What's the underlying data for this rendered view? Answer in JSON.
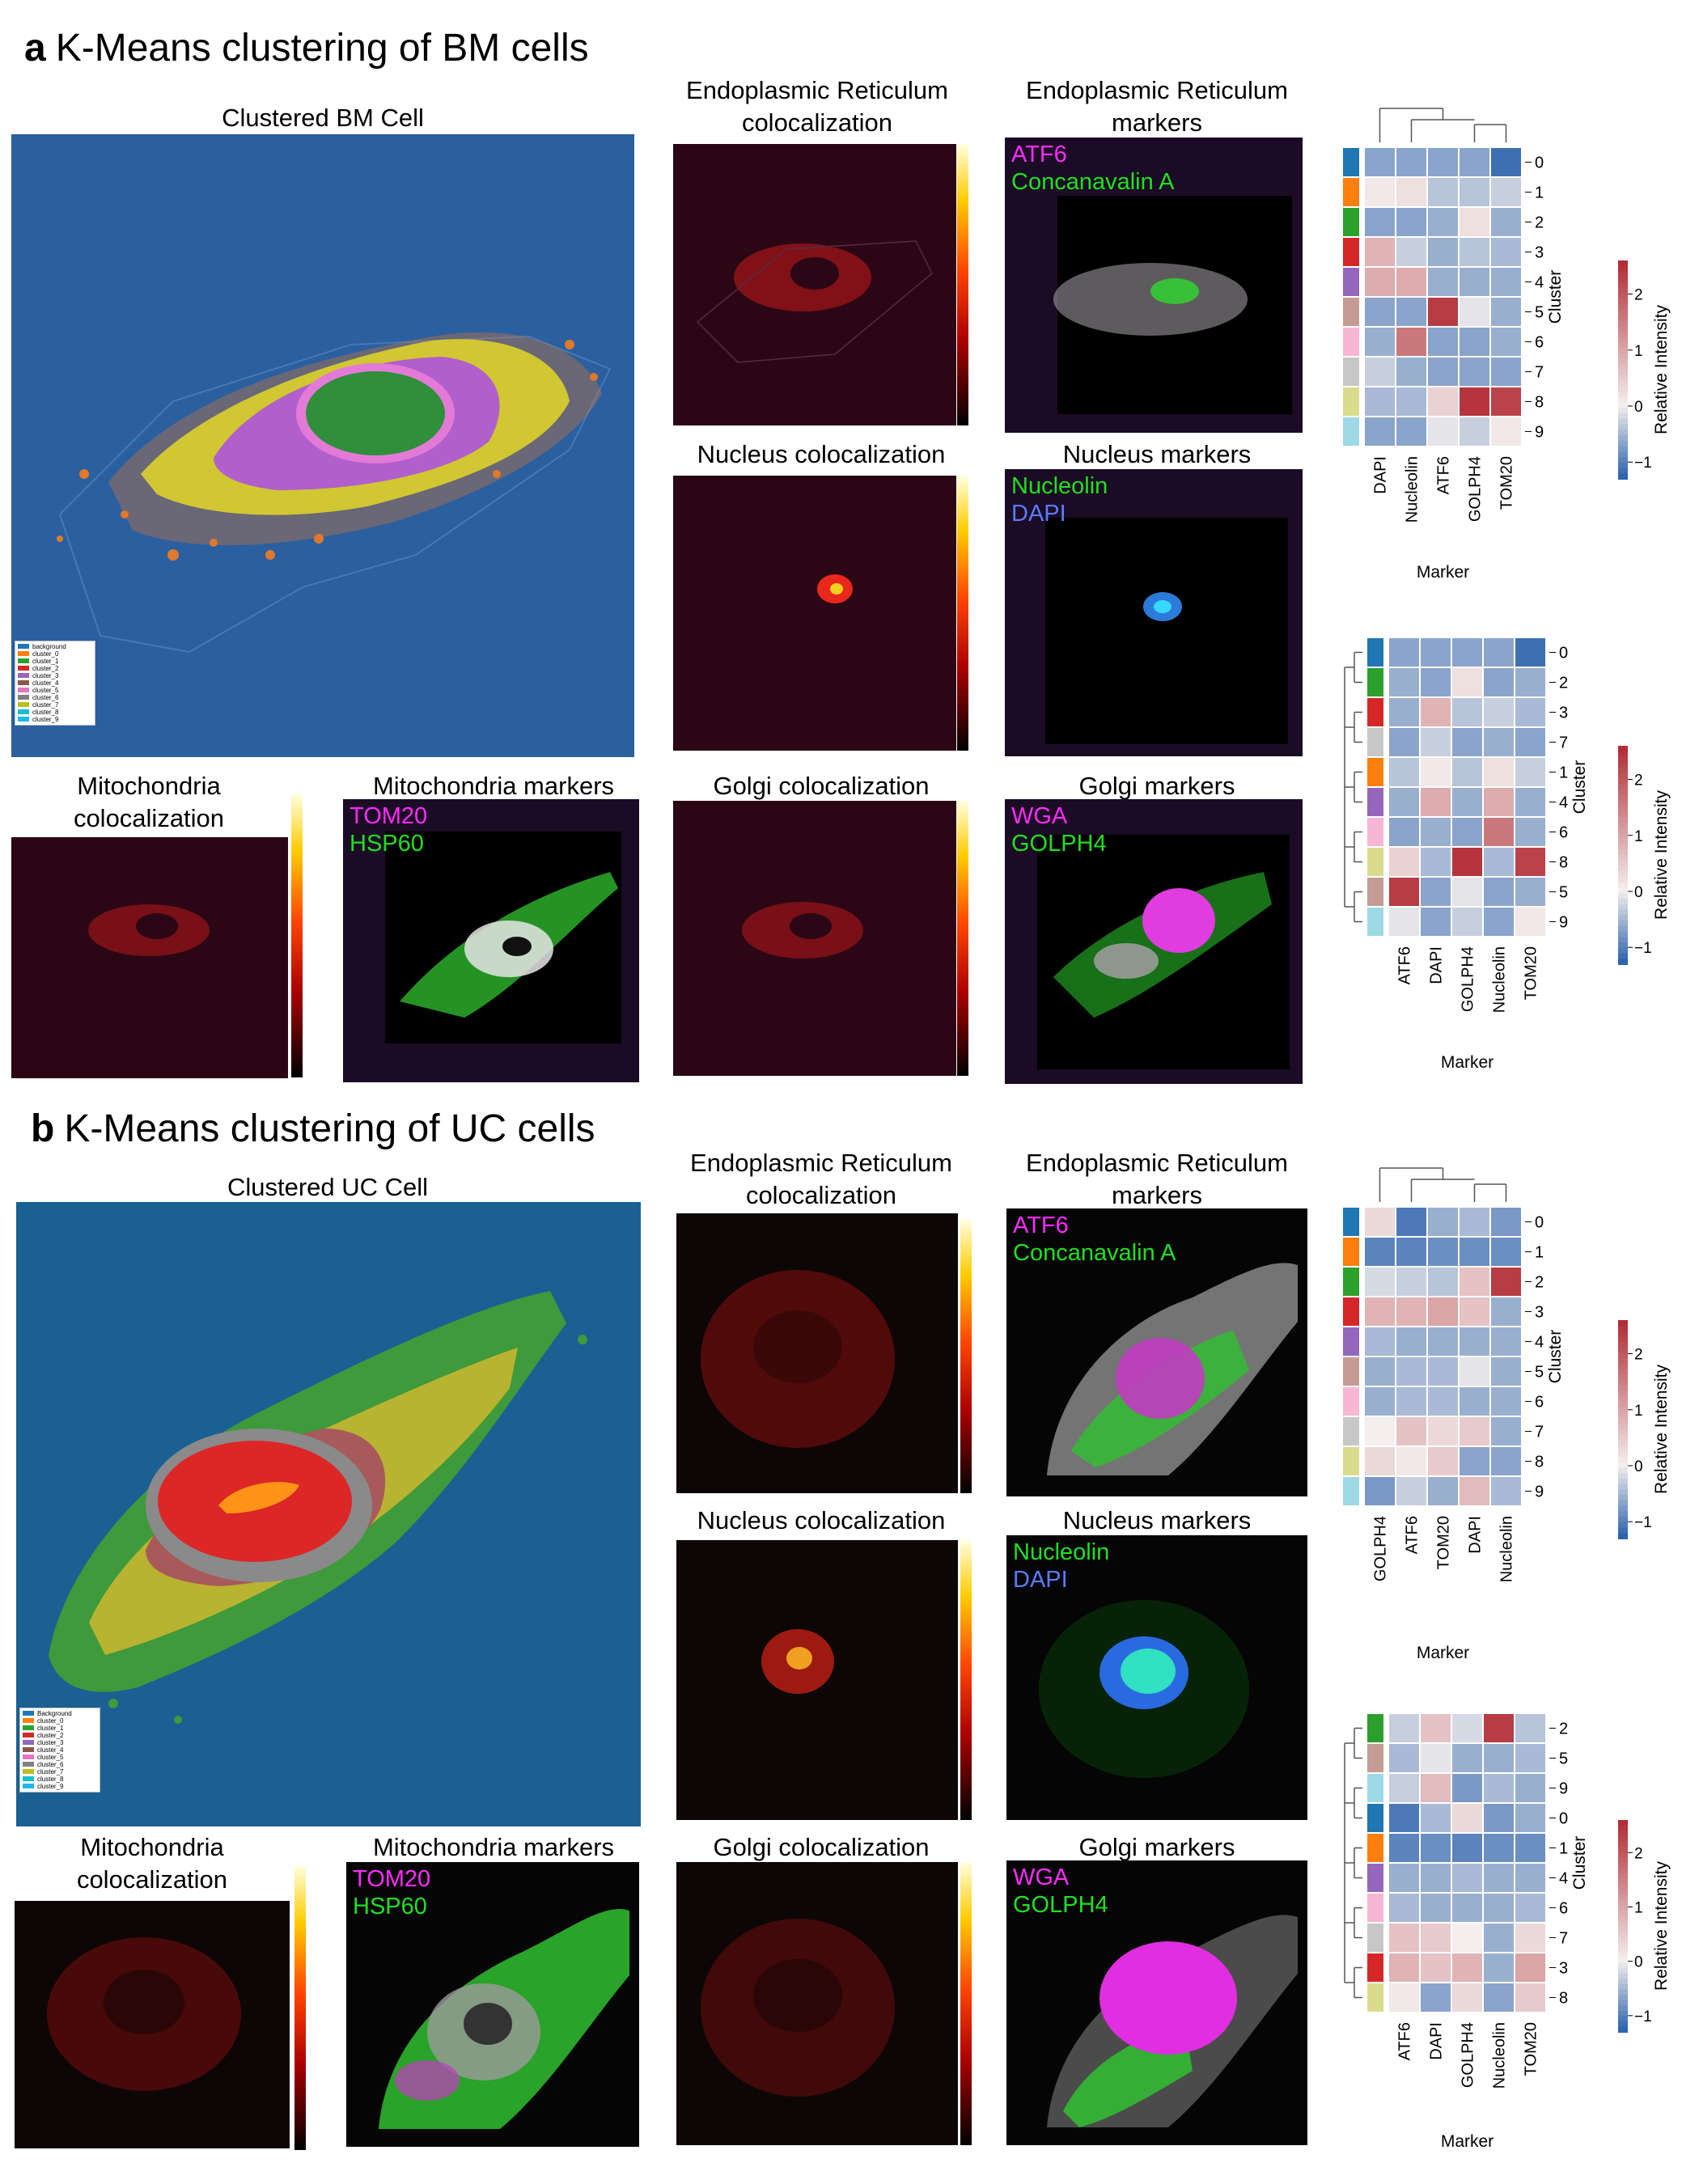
{
  "colors": {
    "bm_background": "#2a5fa0",
    "uc_background": "#1a6093",
    "heat_low": "#2f64ae",
    "heat_mid": "#f4efee",
    "heat_high": "#b22d36",
    "magenta": "#ff2bff",
    "green": "#20e020",
    "blue": "#5a7cff"
  },
  "section_a": {
    "letter": "a",
    "title": "K-Means clustering of BM cells",
    "cluster_panel_title": "Clustered BM Cell",
    "legend_items": [
      "background",
      "cluster_0",
      "cluster_1",
      "cluster_2",
      "cluster_3",
      "cluster_4",
      "cluster_5",
      "cluster_6",
      "cluster_7",
      "cluster_8",
      "cluster_9"
    ],
    "er_coloc_title": "Endoplasmic Reticulum colocalization",
    "er_markers_title": "Endoplasmic Reticulum markers",
    "er_markers": [
      "ATF6",
      "Concanavalin A"
    ],
    "nuc_coloc_title": "Nucleus colocalization",
    "nuc_markers_title": "Nucleus markers",
    "nuc_markers": [
      "Nucleolin",
      "DAPI"
    ],
    "mito_coloc_title": "Mitochondria colocalization",
    "mito_markers_title": "Mitochondria markers",
    "mito_markers": [
      "TOM20",
      "HSP60"
    ],
    "golgi_coloc_title": "Golgi colocalization",
    "golgi_markers_title": "Golgi markers",
    "golgi_markers": [
      "WGA",
      "GOLPH4"
    ]
  },
  "section_b": {
    "letter": "b",
    "title": "K-Means clustering of UC cells",
    "cluster_panel_title": "Clustered UC Cell",
    "legend_items": [
      "Background",
      "cluster_0",
      "cluster_1",
      "cluster_2",
      "cluster_3",
      "cluster_4",
      "cluster_5",
      "cluster_6",
      "cluster_7",
      "cluster_8",
      "cluster_9"
    ],
    "er_coloc_title": "Endoplasmic Reticulum colocalization",
    "er_markers_title": "Endoplasmic Reticulum markers",
    "er_markers": [
      "ATF6",
      "Concanavalin A"
    ],
    "nuc_coloc_title": "Nucleus colocalization",
    "nuc_markers_title": "Nucleus markers",
    "nuc_markers": [
      "Nucleolin",
      "DAPI"
    ],
    "mito_coloc_title": "Mitochondria colocalization",
    "mito_markers_title": "Mitochondria markers",
    "mito_markers": [
      "TOM20",
      "HSP60"
    ],
    "golgi_coloc_title": "Golgi colocalization",
    "golgi_markers_title": "Golgi markers",
    "golgi_markers": [
      "WGA",
      "GOLPH4"
    ]
  },
  "chart_data": [
    {
      "type": "heatmap",
      "id": "a1",
      "xlabel": "Marker",
      "ylabel": "Cluster",
      "colorbar_label": "Relative Intensity",
      "colorbar_ticks": [
        2,
        1,
        0,
        -1
      ],
      "vmin": -1.3,
      "vmax": 2.6,
      "columns": [
        "DAPI",
        "Nucleolin",
        "ATF6",
        "GOLPH4",
        "TOM20"
      ],
      "rows": [
        "0",
        "1",
        "2",
        "3",
        "4",
        "5",
        "6",
        "7",
        "8",
        "9"
      ],
      "row_colors": [
        "#1f77b4",
        "#ff7f0e",
        "#2ca02c",
        "#d62728",
        "#9467bd",
        "#c49c94",
        "#f7b6d2",
        "#c7c7c7",
        "#dbdb8d",
        "#9edae5"
      ],
      "values": [
        [
          -0.7,
          -0.7,
          -0.7,
          -0.7,
          -1.2
        ],
        [
          0.1,
          0.2,
          -0.4,
          -0.4,
          -0.3
        ],
        [
          -0.7,
          -0.7,
          -0.6,
          0.2,
          -0.6
        ],
        [
          0.8,
          -0.3,
          -0.6,
          -0.4,
          -0.5
        ],
        [
          0.9,
          0.9,
          -0.6,
          -0.6,
          -0.6
        ],
        [
          -0.7,
          -0.7,
          2.4,
          -0.1,
          -0.6
        ],
        [
          -0.6,
          1.6,
          -0.7,
          -0.7,
          -0.6
        ],
        [
          -0.3,
          -0.6,
          -0.7,
          -0.7,
          -0.7
        ],
        [
          -0.5,
          -0.5,
          0.4,
          2.5,
          2.3
        ],
        [
          -0.7,
          -0.7,
          -0.1,
          -0.3,
          0.1
        ]
      ]
    },
    {
      "type": "heatmap",
      "id": "a2",
      "xlabel": "Marker",
      "ylabel": "Cluster",
      "colorbar_label": "Relative Intensity",
      "colorbar_ticks": [
        2,
        1,
        0,
        -1
      ],
      "vmin": -1.3,
      "vmax": 2.6,
      "columns": [
        "ATF6",
        "DAPI",
        "GOLPH4",
        "Nucleolin",
        "TOM20"
      ],
      "rows": [
        "0",
        "2",
        "3",
        "7",
        "1",
        "4",
        "6",
        "8",
        "5",
        "9"
      ],
      "row_colors": [
        "#1f77b4",
        "#2ca02c",
        "#d62728",
        "#c7c7c7",
        "#ff7f0e",
        "#9467bd",
        "#f7b6d2",
        "#dbdb8d",
        "#c49c94",
        "#9edae5"
      ],
      "values": [
        [
          -0.7,
          -0.7,
          -0.7,
          -0.7,
          -1.2
        ],
        [
          -0.6,
          -0.7,
          0.2,
          -0.7,
          -0.6
        ],
        [
          -0.6,
          0.8,
          -0.4,
          -0.3,
          -0.5
        ],
        [
          -0.7,
          -0.3,
          -0.7,
          -0.6,
          -0.7
        ],
        [
          -0.4,
          0.1,
          -0.4,
          0.2,
          -0.3
        ],
        [
          -0.6,
          0.9,
          -0.6,
          0.9,
          -0.6
        ],
        [
          -0.7,
          -0.6,
          -0.7,
          1.6,
          -0.6
        ],
        [
          0.4,
          -0.5,
          2.5,
          -0.5,
          2.3
        ],
        [
          2.4,
          -0.7,
          -0.1,
          -0.7,
          -0.6
        ],
        [
          -0.1,
          -0.7,
          -0.3,
          -0.7,
          0.1
        ]
      ]
    },
    {
      "type": "heatmap",
      "id": "b1",
      "xlabel": "Marker",
      "ylabel": "Cluster",
      "colorbar_label": "Relative Intensity",
      "colorbar_ticks": [
        2,
        1,
        0,
        -1
      ],
      "vmin": -1.3,
      "vmax": 2.6,
      "columns": [
        "GOLPH4",
        "ATF6",
        "TOM20",
        "DAPI",
        "Nucleolin"
      ],
      "rows": [
        "0",
        "1",
        "2",
        "3",
        "4",
        "5",
        "6",
        "7",
        "8",
        "9"
      ],
      "row_colors": [
        "#1f77b4",
        "#ff7f0e",
        "#2ca02c",
        "#d62728",
        "#9467bd",
        "#c49c94",
        "#f7b6d2",
        "#c7c7c7",
        "#dbdb8d",
        "#9edae5"
      ],
      "values": [
        [
          0.3,
          -1.1,
          -0.6,
          -0.5,
          -0.8
        ],
        [
          -1.0,
          -1.0,
          -0.9,
          -0.9,
          -0.9
        ],
        [
          -0.2,
          -0.3,
          -0.4,
          0.6,
          2.4
        ],
        [
          0.8,
          0.8,
          1.0,
          0.6,
          -0.6
        ],
        [
          -0.5,
          -0.6,
          -0.6,
          -0.6,
          -0.6
        ],
        [
          -0.6,
          -0.5,
          -0.5,
          -0.1,
          -0.6
        ],
        [
          -0.6,
          -0.5,
          -0.5,
          -0.6,
          -0.6
        ],
        [
          0.0,
          0.6,
          0.3,
          0.5,
          -0.6
        ],
        [
          0.3,
          0.1,
          0.5,
          -0.7,
          -0.7
        ],
        [
          -0.8,
          -0.3,
          -0.6,
          0.7,
          -0.5
        ]
      ]
    },
    {
      "type": "heatmap",
      "id": "b2",
      "xlabel": "Marker",
      "ylabel": "Cluster",
      "colorbar_label": "Relative Intensity",
      "colorbar_ticks": [
        2,
        1,
        0,
        -1
      ],
      "vmin": -1.3,
      "vmax": 2.6,
      "columns": [
        "ATF6",
        "DAPI",
        "GOLPH4",
        "Nucleolin",
        "TOM20"
      ],
      "rows": [
        "2",
        "5",
        "9",
        "0",
        "1",
        "4",
        "6",
        "7",
        "3",
        "8"
      ],
      "row_colors": [
        "#2ca02c",
        "#c49c94",
        "#9edae5",
        "#1f77b4",
        "#ff7f0e",
        "#9467bd",
        "#f7b6d2",
        "#c7c7c7",
        "#d62728",
        "#dbdb8d"
      ],
      "values": [
        [
          -0.3,
          0.6,
          -0.2,
          2.4,
          -0.4
        ],
        [
          -0.5,
          -0.1,
          -0.6,
          -0.6,
          -0.5
        ],
        [
          -0.3,
          0.7,
          -0.8,
          -0.5,
          -0.6
        ],
        [
          -1.1,
          -0.5,
          0.3,
          -0.8,
          -0.6
        ],
        [
          -1.0,
          -0.9,
          -1.0,
          -0.9,
          -0.9
        ],
        [
          -0.6,
          -0.6,
          -0.5,
          -0.6,
          -0.6
        ],
        [
          -0.5,
          -0.6,
          -0.6,
          -0.6,
          -0.5
        ],
        [
          0.6,
          0.5,
          0.0,
          -0.6,
          0.3
        ],
        [
          0.8,
          0.6,
          0.8,
          -0.6,
          1.0
        ],
        [
          0.1,
          -0.7,
          0.3,
          -0.7,
          0.5
        ]
      ]
    }
  ]
}
